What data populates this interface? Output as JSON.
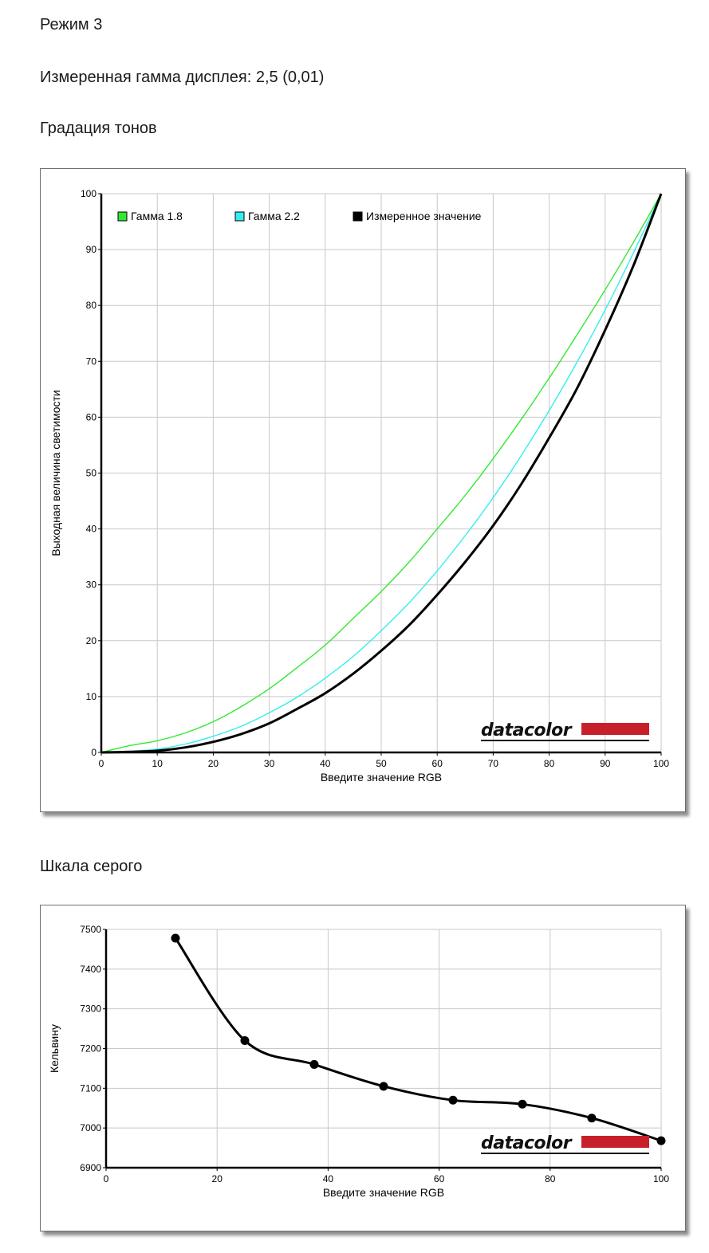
{
  "page": {
    "mode_label": "Режим 3",
    "gamma_label": "Измеренная гамма дисплея: 2,5 (0,01)",
    "tone_section_title": "Градация тонов",
    "gray_section_title": "Шкала серого"
  },
  "logo": {
    "text": "datacolor",
    "accent": "#c8202a"
  },
  "colors": {
    "gamma18": "#33e833",
    "gamma22": "#33eeee",
    "measured": "#000000",
    "grid": "#c8c8c8"
  },
  "chart_data": [
    {
      "type": "line",
      "title": "",
      "xlabel": "Введите значение RGB",
      "ylabel": "Выходная величина светимости",
      "xlim": [
        0,
        100
      ],
      "ylim": [
        0,
        100
      ],
      "xticks": [
        "0",
        "10",
        "20",
        "30",
        "40",
        "50",
        "60",
        "70",
        "80",
        "90",
        "100"
      ],
      "yticks": [
        "0",
        "10",
        "20",
        "30",
        "40",
        "50",
        "60",
        "70",
        "80",
        "90",
        "100"
      ],
      "grid": true,
      "legend_position": "top",
      "series": [
        {
          "name": "Гамма 1.8",
          "x": [
            0,
            5,
            10,
            15,
            20,
            25,
            30,
            35,
            40,
            45,
            50,
            55,
            60,
            65,
            70,
            75,
            80,
            85,
            90,
            95,
            100
          ],
          "y": [
            0,
            1.2,
            2.1,
            3.5,
            5.5,
            8.2,
            11.4,
            15.2,
            19.2,
            24,
            28.8,
            34.1,
            40,
            46,
            52.6,
            59.6,
            67,
            74.8,
            82.8,
            91.2,
            100
          ]
        },
        {
          "name": "Гамма 2.2",
          "x": [
            0,
            5,
            10,
            15,
            20,
            25,
            30,
            35,
            40,
            45,
            50,
            55,
            60,
            65,
            70,
            75,
            80,
            85,
            90,
            95,
            100
          ],
          "y": [
            0,
            0.2,
            0.6,
            1.5,
            2.9,
            4.7,
            7.1,
            9.9,
            13.3,
            17.2,
            21.8,
            26.8,
            32.5,
            38.8,
            45.6,
            53.1,
            61.2,
            69.9,
            79.2,
            89.3,
            100
          ]
        },
        {
          "name": "Измеренное значение",
          "x": [
            0,
            5,
            10,
            15,
            20,
            25,
            30,
            35,
            40,
            45,
            50,
            55,
            60,
            65,
            70,
            75,
            80,
            85,
            90,
            95,
            100
          ],
          "y": [
            0,
            0.1,
            0.3,
            0.9,
            1.9,
            3.3,
            5.2,
            7.8,
            10.6,
            14.1,
            18.2,
            22.8,
            28.2,
            34.1,
            40.6,
            48,
            56.3,
            65.2,
            75.6,
            87,
            100
          ]
        }
      ]
    },
    {
      "type": "line",
      "title": "",
      "xlabel": "Введите значение RGB",
      "ylabel": "Кельвину",
      "xlim": [
        0,
        100
      ],
      "ylim": [
        6900,
        7500
      ],
      "xticks": [
        "0",
        "20",
        "40",
        "60",
        "80",
        "100"
      ],
      "yticks": [
        "6900",
        "7000",
        "7100",
        "7200",
        "7300",
        "7400",
        "7500"
      ],
      "grid": true,
      "series": [
        {
          "x": [
            12.5,
            25,
            37.5,
            50,
            62.5,
            75,
            87.5,
            100
          ],
          "y": [
            7478,
            7220,
            7160,
            7105,
            7070,
            7060,
            7025,
            6968
          ]
        }
      ]
    }
  ]
}
